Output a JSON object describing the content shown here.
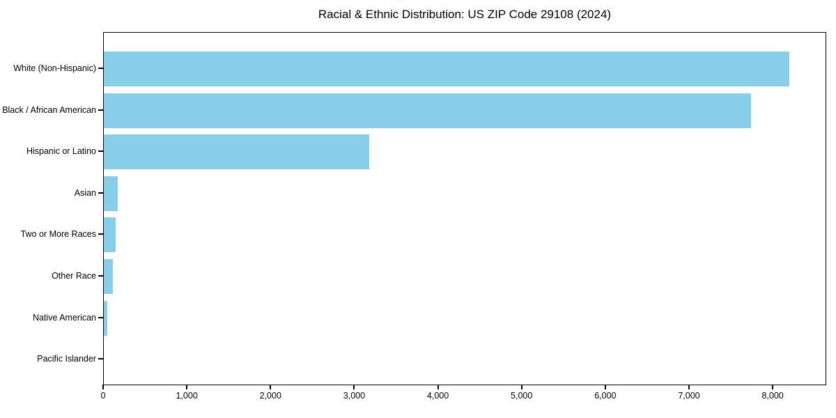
{
  "chart_data": {
    "type": "bar",
    "orientation": "horizontal",
    "title": "Racial & Ethnic Distribution: US ZIP Code 29108 (2024)",
    "categories": [
      "White (Non-Hispanic)",
      "Black / African American",
      "Hispanic or Latino",
      "Asian",
      "Two or More Races",
      "Other Race",
      "Native American",
      "Pacific Islander"
    ],
    "values": [
      8210,
      7750,
      3180,
      165,
      140,
      105,
      45,
      0
    ],
    "xlabel": "",
    "ylabel": "",
    "xlim": [
      0,
      8640
    ],
    "x_ticks": [
      0,
      1000,
      2000,
      3000,
      4000,
      5000,
      6000,
      7000,
      8000
    ],
    "x_tick_labels": [
      "0",
      "1,000",
      "2,000",
      "3,000",
      "4,000",
      "5,000",
      "6,000",
      "7,000",
      "8,000"
    ],
    "bar_color": "#87CEEB",
    "frame_color": "#000000",
    "grid": false,
    "legend": false
  }
}
